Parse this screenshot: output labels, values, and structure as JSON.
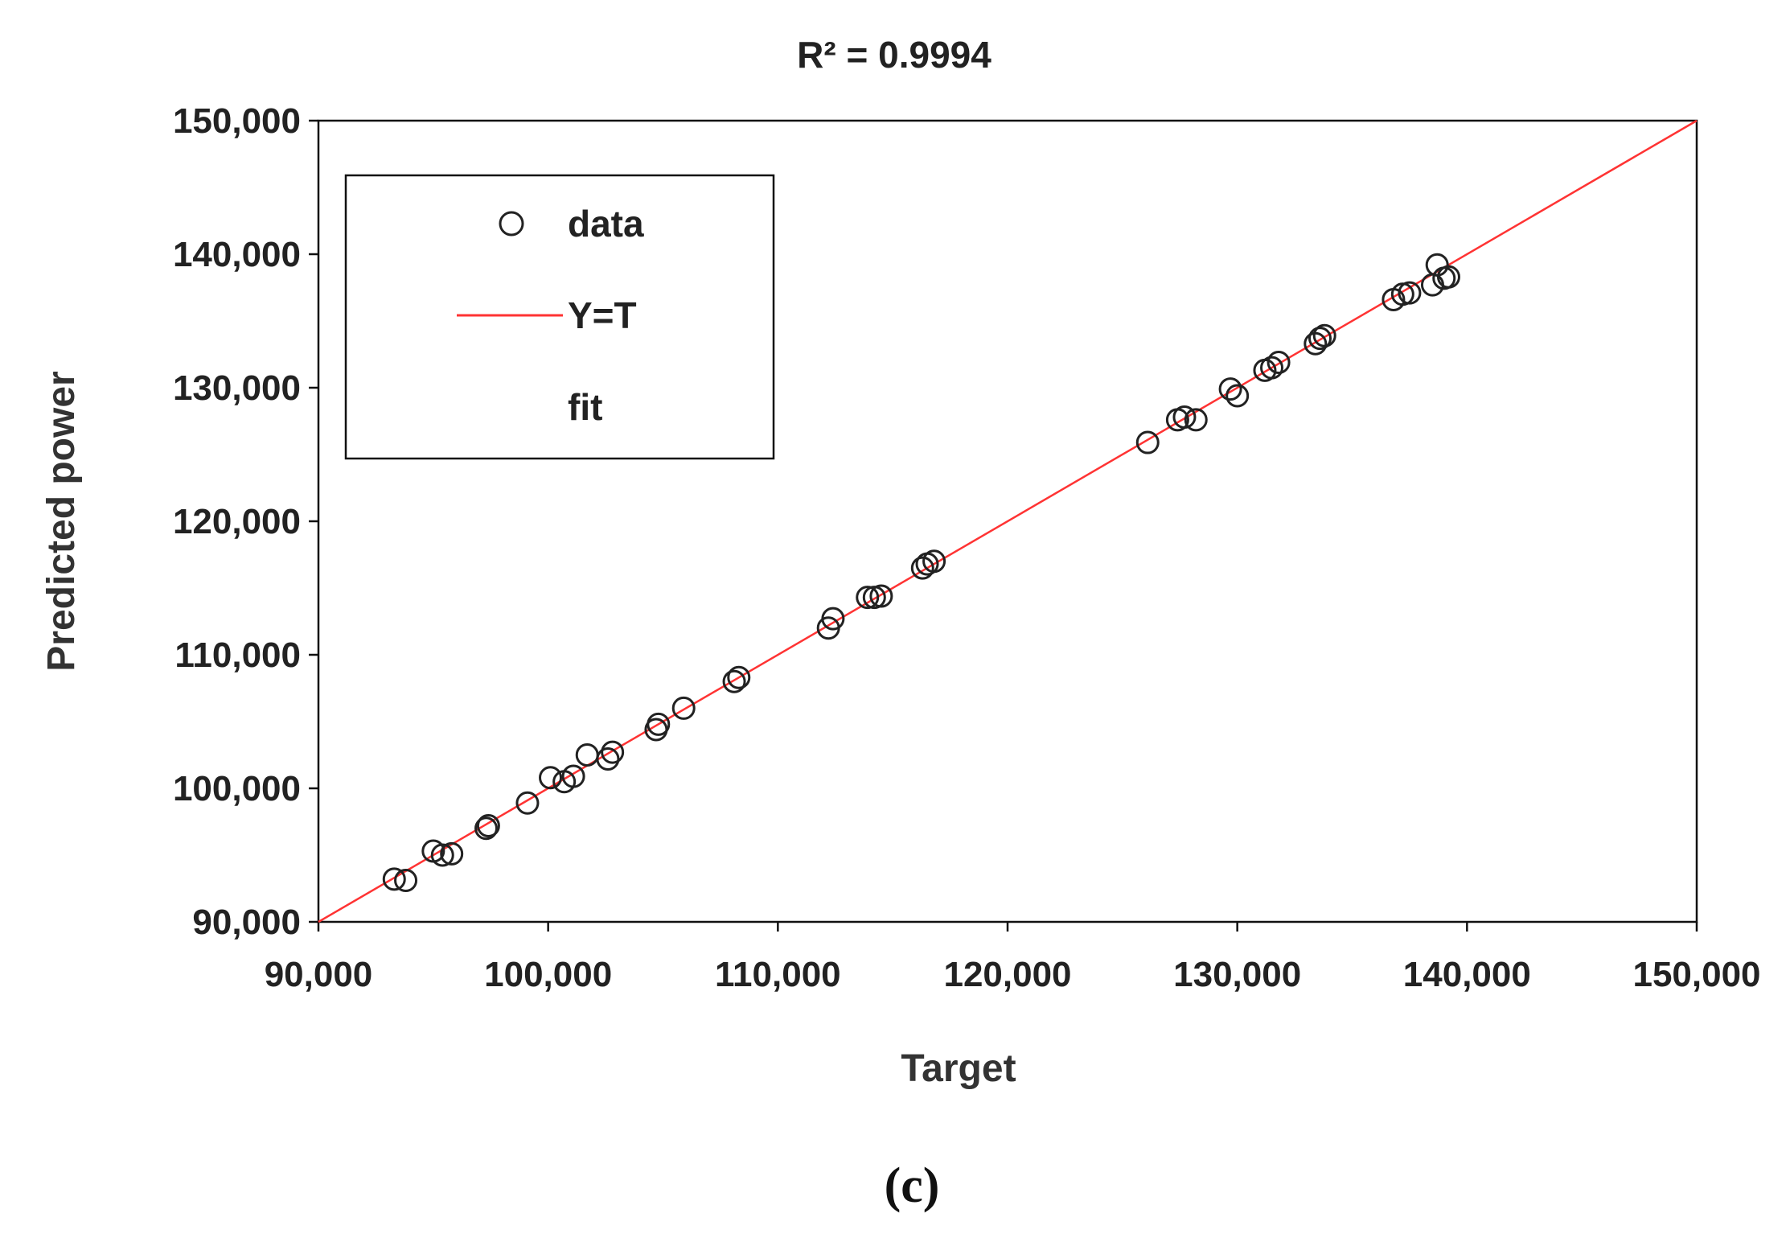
{
  "chart_data": {
    "type": "scatter",
    "title": "R² = 0.9994",
    "xlabel": "Target",
    "ylabel": "Predicted power",
    "xlim": [
      90000,
      150000
    ],
    "ylim": [
      90000,
      150000
    ],
    "xticks": [
      "90,000",
      "100,000",
      "110,000",
      "120,000",
      "130,000",
      "140,000",
      "150,000"
    ],
    "yticks": [
      "90,000",
      "100,000",
      "110,000",
      "120,000",
      "130,000",
      "140,000",
      "150,000"
    ],
    "xtick_values": [
      90000,
      100000,
      110000,
      120000,
      130000,
      140000,
      150000
    ],
    "ytick_values": [
      90000,
      100000,
      110000,
      120000,
      130000,
      140000,
      150000
    ],
    "grid": false,
    "legend_position": "top-left",
    "legend": [
      {
        "label": "data",
        "marker": "circle"
      },
      {
        "label": "Y=T",
        "marker": "line",
        "color": "#ff3333"
      },
      {
        "label": "fit",
        "marker": "none"
      }
    ],
    "caption": "(c)",
    "series": [
      {
        "name": "data",
        "x": [
          93300,
          93800,
          95000,
          95400,
          95800,
          97300,
          97400,
          99100,
          100100,
          100700,
          101100,
          101700,
          102600,
          102800,
          104700,
          104800,
          105900,
          108100,
          108300,
          112200,
          112400,
          113900,
          114200,
          114500,
          116300,
          116500,
          116800,
          126100,
          127400,
          127700,
          128200,
          129700,
          130000,
          131200,
          131500,
          131800,
          133400,
          133600,
          133800,
          136800,
          137200,
          137500,
          138500,
          138700,
          139000,
          139200
        ],
        "y": [
          93200,
          93100,
          95300,
          95000,
          95100,
          97000,
          97200,
          98900,
          100800,
          100500,
          100900,
          102500,
          102200,
          102700,
          104400,
          104800,
          106000,
          108000,
          108300,
          112000,
          112700,
          114300,
          114300,
          114400,
          116500,
          116800,
          117000,
          125900,
          127600,
          127800,
          127600,
          129900,
          129400,
          131300,
          131500,
          131900,
          133300,
          133700,
          133900,
          136600,
          137000,
          137100,
          137700,
          139200,
          138200,
          138300
        ]
      },
      {
        "name": "Y=T",
        "x": [
          90000,
          150000
        ],
        "y": [
          90000,
          150000
        ],
        "color": "#ff3333"
      }
    ]
  }
}
